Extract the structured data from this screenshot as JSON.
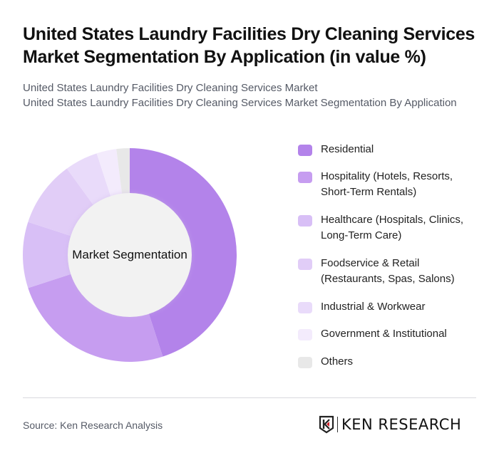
{
  "header": {
    "title": "United States Laundry Facilities Dry Cleaning Services Market Segmentation By Application (in value %)",
    "subtitle_line1": "United States Laundry Facilities Dry Cleaning Services Market",
    "subtitle_line2": "United States Laundry Facilities Dry Cleaning Services Market Segmentation By Application"
  },
  "chart": {
    "center_label": "Market Segmentation"
  },
  "legend": {
    "items": [
      {
        "label": "Residential",
        "color": "#b383ea"
      },
      {
        "label": "Hospitality (Hotels, Resorts, Short-Term Rentals)",
        "color": "#c69df0"
      },
      {
        "label": "Healthcare (Hospitals, Clinics, Long-Term Care)",
        "color": "#d8bff6"
      },
      {
        "label": "Foodservice & Retail (Restaurants, Spas, Salons)",
        "color": "#e1cdf7"
      },
      {
        "label": "Industrial & Workwear",
        "color": "#e9dbfa"
      },
      {
        "label": "Government & Institutional",
        "color": "#f3ebfc"
      },
      {
        "label": "Others",
        "color": "#e8e8e8"
      }
    ]
  },
  "footer": {
    "source": "Source: Ken Research Analysis",
    "logo_text": "KEN RESEARCH"
  },
  "chart_data": {
    "type": "pie",
    "variant": "donut",
    "title": "United States Laundry Facilities Dry Cleaning Services Market Segmentation By Application (in value %)",
    "center_label": "Market Segmentation",
    "categories": [
      "Residential",
      "Hospitality (Hotels, Resorts, Short-Term Rentals)",
      "Healthcare (Hospitals, Clinics, Long-Term Care)",
      "Foodservice & Retail (Restaurants, Spas, Salons)",
      "Industrial & Workwear",
      "Government & Institutional",
      "Others"
    ],
    "values": [
      45,
      25,
      10,
      10,
      5,
      3,
      2
    ],
    "colors": [
      "#b383ea",
      "#c69df0",
      "#d8bff6",
      "#e1cdf7",
      "#e9dbfa",
      "#f3ebfc",
      "#e8e8e8"
    ],
    "unit": "%",
    "legend_position": "right",
    "start_angle_deg": 0,
    "direction": "clockwise"
  }
}
